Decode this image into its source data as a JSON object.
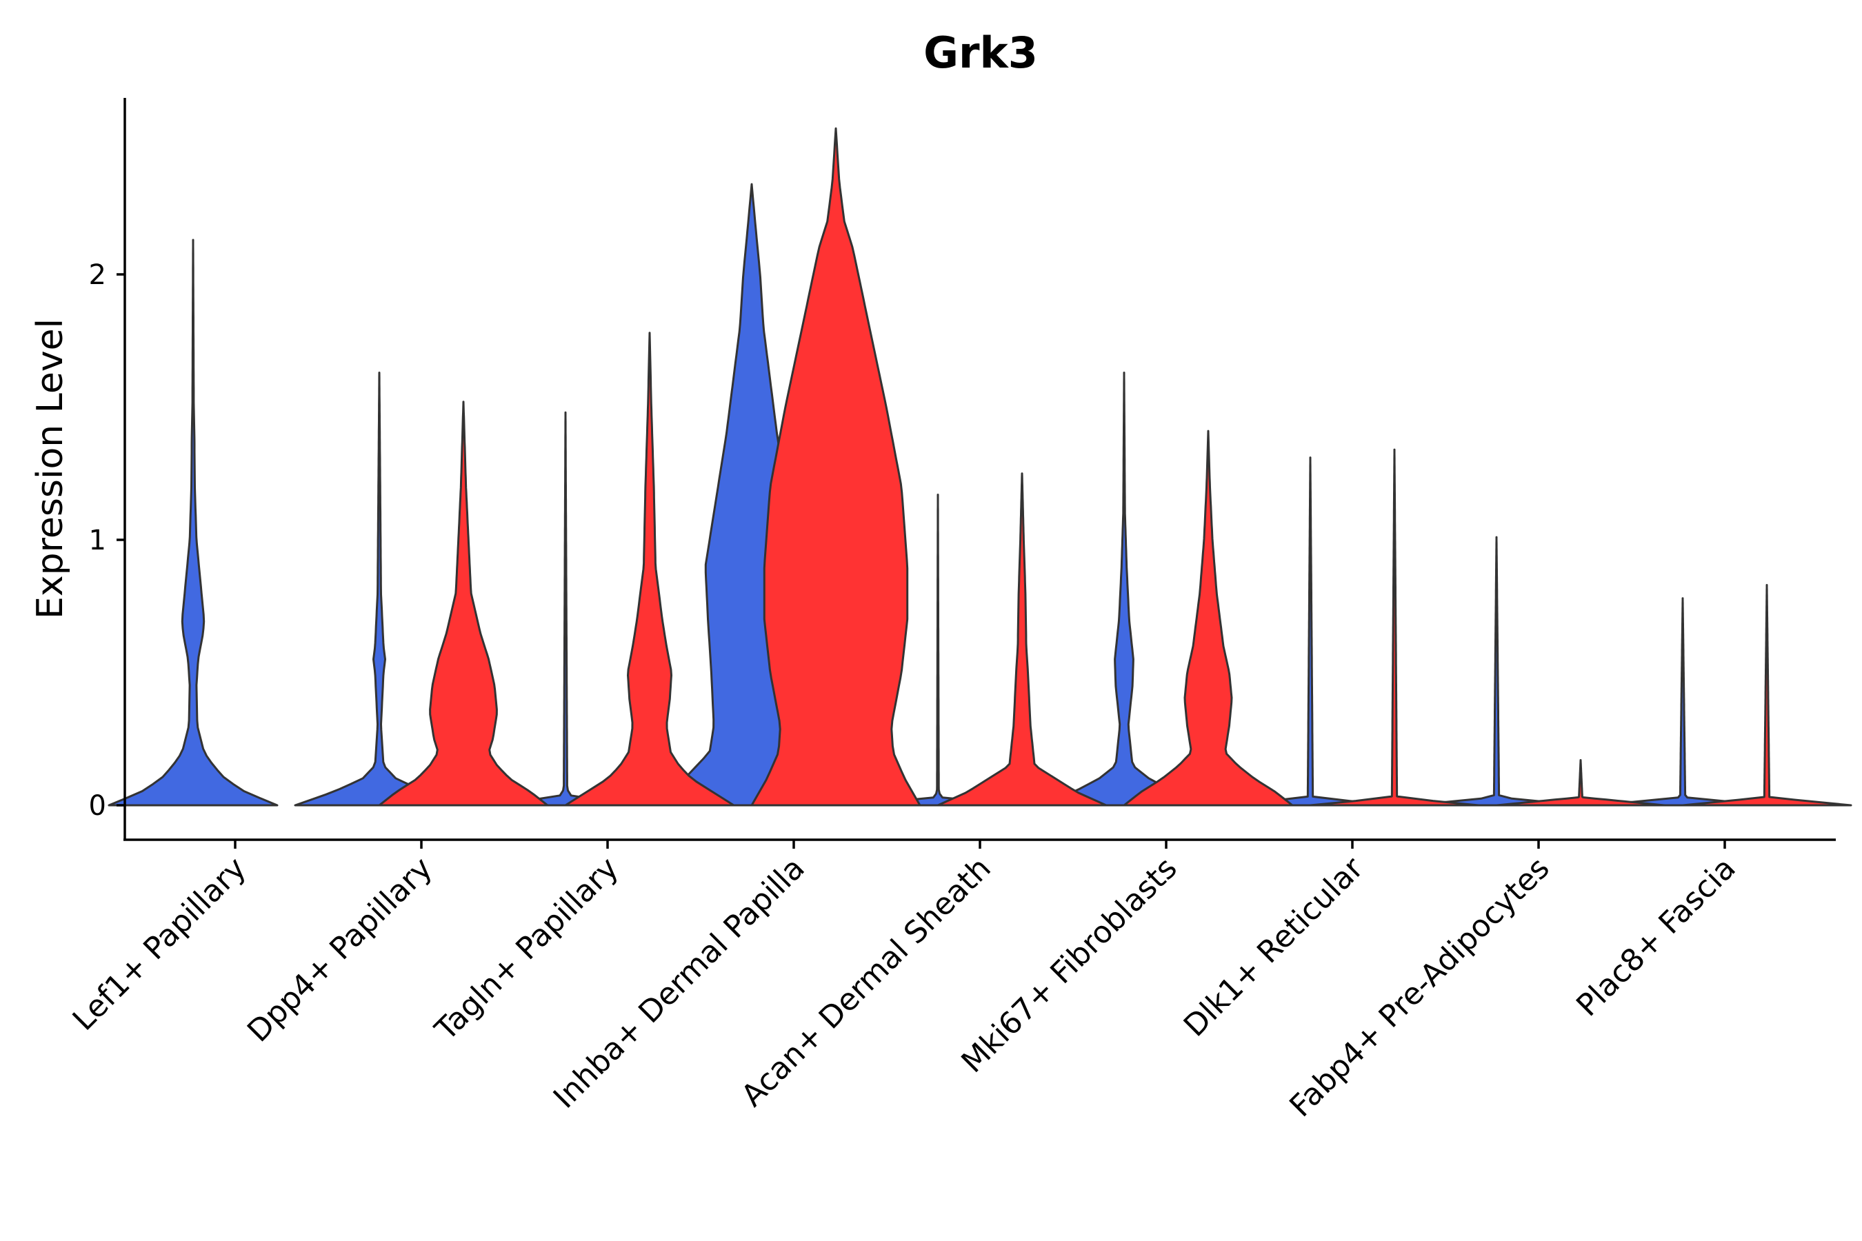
{
  "chart_data": {
    "type": "violin",
    "title": "Grk3",
    "xlabel": "",
    "ylabel": "Expression Level",
    "ylim": [
      -0.13,
      2.7
    ],
    "yticks": [
      0,
      1,
      2
    ],
    "split_colors": [
      "#4169E1",
      "#FF3333"
    ],
    "categories": [
      "Lef1+ Papillary",
      "Dpp4+ Papillary",
      "Tagln+ Papillary",
      "Inhba+ Dermal Papilla",
      "Acan+ Dermal Sheath",
      "Mki67+ Fibroblasts",
      "Dlk1+ Reticular",
      "Fabp4+ Pre-Adipocytes",
      "Plac8+ Fascia"
    ],
    "series": [
      {
        "name": "group-blue",
        "color": "#4169E1",
        "max": [
          2.13,
          1.63,
          1.48,
          2.34,
          1.17,
          1.63,
          1.31,
          1.01,
          0.78
        ],
        "profiles": [
          [
            [
              0,
              1
            ],
            [
              0.05,
              0.62
            ],
            [
              0.1,
              0.38
            ],
            [
              0.15,
              0.24
            ],
            [
              0.2,
              0.13
            ],
            [
              0.3,
              0.05
            ],
            [
              0.45,
              0.04
            ],
            [
              0.55,
              0.06
            ],
            [
              0.65,
              0.12
            ],
            [
              0.7,
              0.13
            ],
            [
              0.8,
              0.1
            ],
            [
              0.9,
              0.07
            ],
            [
              1,
              0.04
            ],
            [
              1.2,
              0.02
            ],
            [
              1.4,
              0.015
            ],
            [
              1.5,
              0.008
            ],
            [
              2.13,
              0
            ]
          ],
          [
            [
              0,
              1
            ],
            [
              0.05,
              0.55
            ],
            [
              0.1,
              0.2
            ],
            [
              0.15,
              0.05
            ],
            [
              0.3,
              0.02
            ],
            [
              0.5,
              0.05
            ],
            [
              0.55,
              0.07
            ],
            [
              0.6,
              0.05
            ],
            [
              0.8,
              0.02
            ],
            [
              1.63,
              0
            ]
          ],
          [
            [
              0,
              1
            ],
            [
              0.03,
              0.08
            ],
            [
              0.06,
              0.02
            ],
            [
              1.48,
              0
            ]
          ],
          [
            [
              0,
              1
            ],
            [
              0.1,
              0.8
            ],
            [
              0.2,
              0.5
            ],
            [
              0.3,
              0.45
            ],
            [
              0.5,
              0.48
            ],
            [
              0.7,
              0.52
            ],
            [
              0.9,
              0.55
            ],
            [
              1.1,
              0.45
            ],
            [
              1.2,
              0.4
            ],
            [
              1.4,
              0.3
            ],
            [
              1.6,
              0.22
            ],
            [
              1.8,
              0.14
            ],
            [
              2.0,
              0.1
            ],
            [
              2.2,
              0.04
            ],
            [
              2.34,
              0
            ]
          ],
          [
            [
              0,
              1
            ],
            [
              0.03,
              0.03
            ],
            [
              0.06,
              0.01
            ],
            [
              1.17,
              0
            ]
          ],
          [
            [
              0,
              1
            ],
            [
              0.05,
              0.6
            ],
            [
              0.1,
              0.3
            ],
            [
              0.15,
              0.1
            ],
            [
              0.3,
              0.05
            ],
            [
              0.45,
              0.1
            ],
            [
              0.55,
              0.11
            ],
            [
              0.7,
              0.06
            ],
            [
              0.9,
              0.03
            ],
            [
              1.1,
              0.01
            ],
            [
              1.63,
              0
            ]
          ],
          [
            [
              0,
              1
            ],
            [
              0.03,
              0.03
            ],
            [
              1.31,
              0
            ]
          ],
          [
            [
              0,
              1
            ],
            [
              0.03,
              0.03
            ],
            [
              1.01,
              0
            ]
          ],
          [
            [
              0,
              1
            ],
            [
              0.03,
              0.03
            ],
            [
              0.78,
              0
            ]
          ]
        ]
      },
      {
        "name": "group-red",
        "color": "#FF3333",
        "max": [
          null,
          1.52,
          1.78,
          2.55,
          1.25,
          1.41,
          1.34,
          0.17,
          0.83
        ],
        "profiles": [
          null,
          [
            [
              0,
              1
            ],
            [
              0.05,
              0.8
            ],
            [
              0.1,
              0.55
            ],
            [
              0.15,
              0.4
            ],
            [
              0.2,
              0.3
            ],
            [
              0.25,
              0.35
            ],
            [
              0.35,
              0.4
            ],
            [
              0.45,
              0.37
            ],
            [
              0.55,
              0.3
            ],
            [
              0.65,
              0.2
            ],
            [
              0.8,
              0.09
            ],
            [
              1.0,
              0.06
            ],
            [
              1.2,
              0.03
            ],
            [
              1.52,
              0
            ]
          ],
          [
            [
              0,
              1
            ],
            [
              0.05,
              0.75
            ],
            [
              0.1,
              0.5
            ],
            [
              0.15,
              0.35
            ],
            [
              0.2,
              0.25
            ],
            [
              0.3,
              0.2
            ],
            [
              0.4,
              0.24
            ],
            [
              0.5,
              0.26
            ],
            [
              0.6,
              0.2
            ],
            [
              0.7,
              0.15
            ],
            [
              0.9,
              0.07
            ],
            [
              1.2,
              0.05
            ],
            [
              1.5,
              0.02
            ],
            [
              1.78,
              0
            ]
          ],
          [
            [
              0,
              1
            ],
            [
              0.1,
              0.82
            ],
            [
              0.2,
              0.68
            ],
            [
              0.3,
              0.66
            ],
            [
              0.5,
              0.78
            ],
            [
              0.7,
              0.85
            ],
            [
              0.9,
              0.85
            ],
            [
              1.2,
              0.78
            ],
            [
              1.5,
              0.6
            ],
            [
              1.8,
              0.4
            ],
            [
              2.1,
              0.2
            ],
            [
              2.2,
              0.1
            ],
            [
              2.35,
              0.04
            ],
            [
              2.55,
              0
            ]
          ],
          [
            [
              0,
              1
            ],
            [
              0.05,
              0.65
            ],
            [
              0.1,
              0.4
            ],
            [
              0.15,
              0.15
            ],
            [
              0.3,
              0.1
            ],
            [
              0.5,
              0.07
            ],
            [
              0.6,
              0.05
            ],
            [
              0.8,
              0.04
            ],
            [
              1.0,
              0.02
            ],
            [
              1.25,
              0
            ]
          ],
          [
            [
              0,
              1
            ],
            [
              0.05,
              0.8
            ],
            [
              0.1,
              0.55
            ],
            [
              0.15,
              0.35
            ],
            [
              0.2,
              0.2
            ],
            [
              0.3,
              0.25
            ],
            [
              0.4,
              0.28
            ],
            [
              0.5,
              0.25
            ],
            [
              0.6,
              0.18
            ],
            [
              0.8,
              0.1
            ],
            [
              1.0,
              0.05
            ],
            [
              1.2,
              0.02
            ],
            [
              1.41,
              0
            ]
          ],
          [
            [
              0,
              1
            ],
            [
              0.03,
              0.03
            ],
            [
              1.34,
              0
            ]
          ],
          [
            [
              0,
              1
            ],
            [
              0.03,
              0.02
            ],
            [
              0.17,
              0
            ]
          ],
          [
            [
              0,
              1
            ],
            [
              0.03,
              0.03
            ],
            [
              0.83,
              0
            ]
          ]
        ]
      }
    ]
  }
}
